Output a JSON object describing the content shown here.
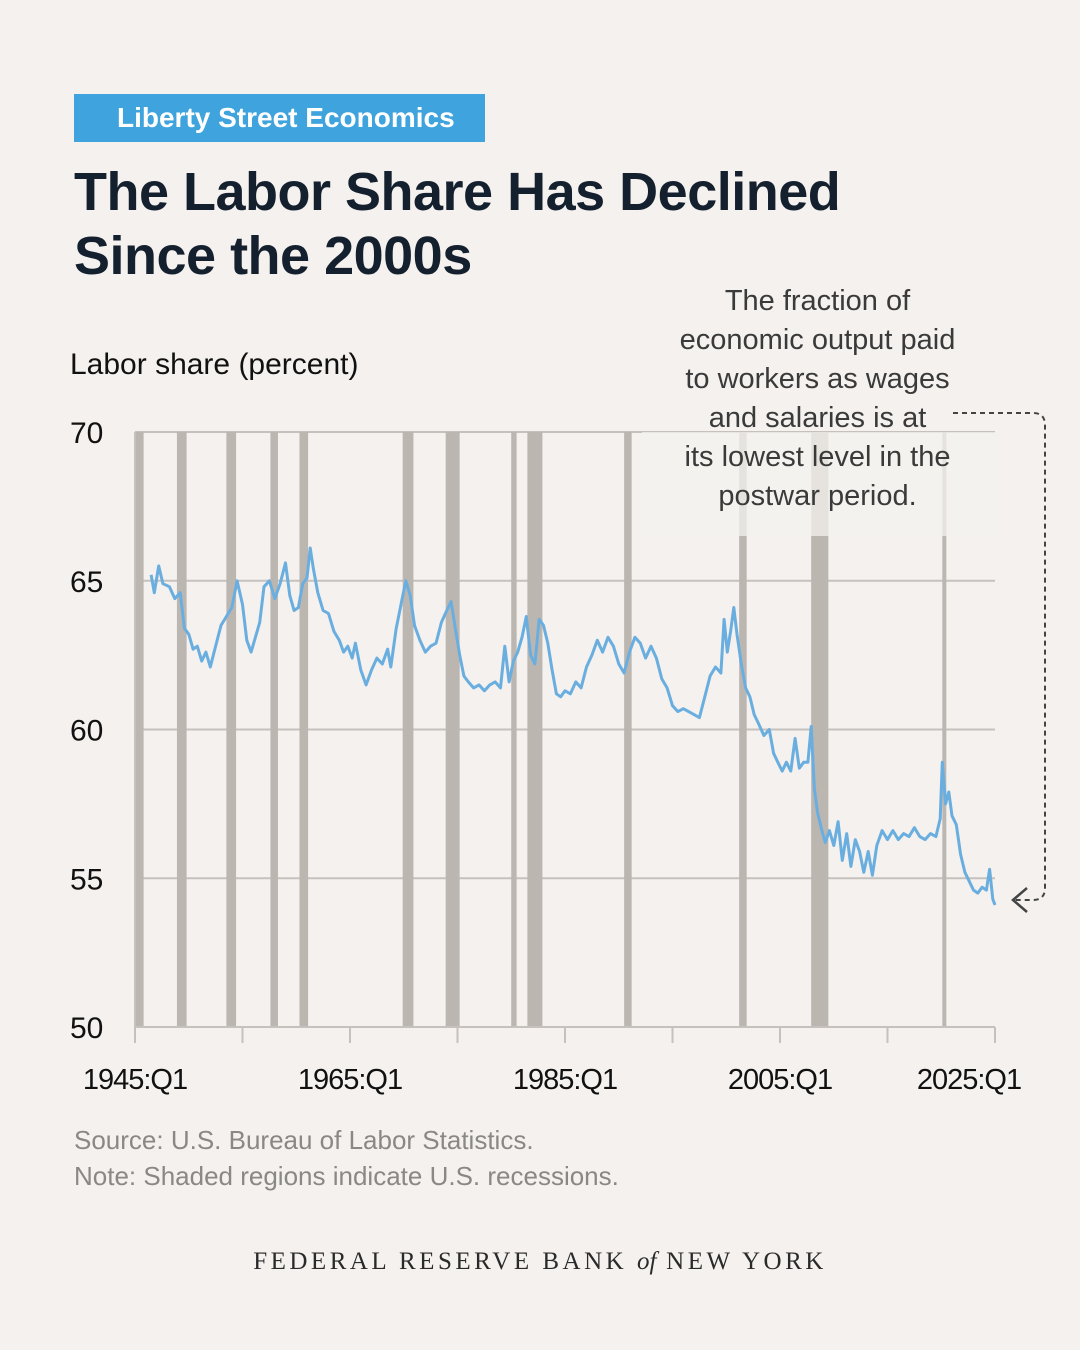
{
  "header": {
    "badge": "Liberty Street Economics",
    "title_line1": "The Labor Share Has Declined",
    "title_line2": "Since the 2000s"
  },
  "annotation": {
    "lines": [
      "The fraction of",
      "economic output paid",
      "to workers as wages",
      "and salaries is at",
      "its lowest level in the",
      "postwar period."
    ]
  },
  "footer": {
    "source": "Source: U.S. Bureau of Labor Statistics.",
    "note": "Note: Shaded regions indicate U.S. recessions.",
    "org_part1": "FEDERAL RESERVE BANK",
    "org_of": "of",
    "org_part2": "NEW YORK"
  },
  "colors": {
    "background": "#f4f1ee",
    "badge": "#3fa3dd",
    "line": "#6aaee0",
    "recession": "#bcb6b1",
    "grid": "#c5c1bd",
    "title": "#14202e"
  },
  "chart_data": {
    "type": "line",
    "ylabel": "Labor share (percent)",
    "xlabel": "",
    "ylim": [
      50,
      70
    ],
    "xlim": [
      1945.0,
      2025.0
    ],
    "yticks": [
      50,
      55,
      60,
      65,
      70
    ],
    "xticks": [
      1945,
      1965,
      1985,
      2005,
      2025
    ],
    "xtick_labels": [
      "1945:Q1",
      "1965:Q1",
      "1985:Q1",
      "2005:Q1",
      "2025:Q1"
    ],
    "grid": "horizontal",
    "recessions": [
      [
        1945.0,
        1945.8
      ],
      [
        1948.9,
        1949.8
      ],
      [
        1953.5,
        1954.4
      ],
      [
        1957.6,
        1958.3
      ],
      [
        1960.3,
        1961.1
      ],
      [
        1969.9,
        1970.9
      ],
      [
        1973.9,
        1975.2
      ],
      [
        1980.0,
        1980.5
      ],
      [
        1981.5,
        1982.9
      ],
      [
        1990.5,
        1991.2
      ],
      [
        2001.2,
        2001.9
      ],
      [
        2007.9,
        2009.5
      ],
      [
        2020.1,
        2020.4
      ]
    ],
    "series": [
      {
        "values": [
          [
            1946.5,
            65.2
          ],
          [
            1946.8,
            64.6
          ],
          [
            1947.2,
            65.5
          ],
          [
            1947.6,
            64.9
          ],
          [
            1948.2,
            64.8
          ],
          [
            1948.7,
            64.4
          ],
          [
            1949.2,
            64.6
          ],
          [
            1949.6,
            63.4
          ],
          [
            1950.0,
            63.2
          ],
          [
            1950.4,
            62.7
          ],
          [
            1950.8,
            62.8
          ],
          [
            1951.2,
            62.3
          ],
          [
            1951.6,
            62.6
          ],
          [
            1952.0,
            62.1
          ],
          [
            1952.5,
            62.8
          ],
          [
            1953.0,
            63.5
          ],
          [
            1953.5,
            63.8
          ],
          [
            1954.0,
            64.1
          ],
          [
            1954.5,
            65.0
          ],
          [
            1955.0,
            64.2
          ],
          [
            1955.4,
            63.0
          ],
          [
            1955.8,
            62.6
          ],
          [
            1956.2,
            63.1
          ],
          [
            1956.6,
            63.6
          ],
          [
            1957.0,
            64.8
          ],
          [
            1957.5,
            65.0
          ],
          [
            1958.0,
            64.4
          ],
          [
            1958.5,
            64.9
          ],
          [
            1959.0,
            65.6
          ],
          [
            1959.4,
            64.5
          ],
          [
            1959.8,
            64.0
          ],
          [
            1960.2,
            64.1
          ],
          [
            1960.6,
            64.9
          ],
          [
            1961.0,
            65.1
          ],
          [
            1961.3,
            66.1
          ],
          [
            1961.6,
            65.4
          ],
          [
            1962.0,
            64.6
          ],
          [
            1962.5,
            64.0
          ],
          [
            1963.0,
            63.9
          ],
          [
            1963.5,
            63.3
          ],
          [
            1964.0,
            63.0
          ],
          [
            1964.4,
            62.6
          ],
          [
            1964.8,
            62.8
          ],
          [
            1965.2,
            62.4
          ],
          [
            1965.5,
            62.9
          ],
          [
            1966.0,
            62.0
          ],
          [
            1966.5,
            61.5
          ],
          [
            1967.0,
            62.0
          ],
          [
            1967.5,
            62.4
          ],
          [
            1968.0,
            62.2
          ],
          [
            1968.5,
            62.7
          ],
          [
            1968.8,
            62.1
          ],
          [
            1969.3,
            63.4
          ],
          [
            1969.8,
            64.3
          ],
          [
            1970.2,
            65.0
          ],
          [
            1970.6,
            64.5
          ],
          [
            1971.0,
            63.5
          ],
          [
            1971.5,
            63.0
          ],
          [
            1972.0,
            62.6
          ],
          [
            1972.5,
            62.8
          ],
          [
            1973.0,
            62.9
          ],
          [
            1973.5,
            63.6
          ],
          [
            1974.0,
            64.0
          ],
          [
            1974.4,
            64.3
          ],
          [
            1974.8,
            63.4
          ],
          [
            1975.2,
            62.5
          ],
          [
            1975.6,
            61.8
          ],
          [
            1976.0,
            61.6
          ],
          [
            1976.5,
            61.4
          ],
          [
            1977.0,
            61.5
          ],
          [
            1977.5,
            61.3
          ],
          [
            1978.0,
            61.5
          ],
          [
            1978.5,
            61.6
          ],
          [
            1979.0,
            61.4
          ],
          [
            1979.4,
            62.8
          ],
          [
            1979.8,
            61.6
          ],
          [
            1980.2,
            62.3
          ],
          [
            1980.6,
            62.6
          ],
          [
            1981.0,
            63.1
          ],
          [
            1981.4,
            63.8
          ],
          [
            1981.8,
            62.5
          ],
          [
            1982.2,
            62.2
          ],
          [
            1982.6,
            63.7
          ],
          [
            1983.0,
            63.5
          ],
          [
            1983.4,
            62.9
          ],
          [
            1983.8,
            62.0
          ],
          [
            1984.2,
            61.2
          ],
          [
            1984.6,
            61.1
          ],
          [
            1985.0,
            61.3
          ],
          [
            1985.5,
            61.2
          ],
          [
            1986.0,
            61.6
          ],
          [
            1986.5,
            61.4
          ],
          [
            1987.0,
            62.1
          ],
          [
            1987.5,
            62.5
          ],
          [
            1988.0,
            63.0
          ],
          [
            1988.5,
            62.6
          ],
          [
            1989.0,
            63.1
          ],
          [
            1989.5,
            62.8
          ],
          [
            1990.0,
            62.2
          ],
          [
            1990.5,
            61.9
          ],
          [
            1991.0,
            62.6
          ],
          [
            1991.5,
            63.1
          ],
          [
            1992.0,
            62.9
          ],
          [
            1992.5,
            62.4
          ],
          [
            1993.0,
            62.8
          ],
          [
            1993.5,
            62.4
          ],
          [
            1994.0,
            61.7
          ],
          [
            1994.5,
            61.4
          ],
          [
            1995.0,
            60.8
          ],
          [
            1995.5,
            60.6
          ],
          [
            1996.0,
            60.7
          ],
          [
            1996.5,
            60.6
          ],
          [
            1997.0,
            60.5
          ],
          [
            1997.5,
            60.4
          ],
          [
            1998.0,
            61.1
          ],
          [
            1998.5,
            61.8
          ],
          [
            1999.0,
            62.1
          ],
          [
            1999.5,
            61.9
          ],
          [
            1999.8,
            63.7
          ],
          [
            2000.1,
            62.6
          ],
          [
            2000.4,
            63.3
          ],
          [
            2000.7,
            64.1
          ],
          [
            2001.0,
            63.2
          ],
          [
            2001.4,
            62.2
          ],
          [
            2001.8,
            61.4
          ],
          [
            2002.2,
            61.1
          ],
          [
            2002.6,
            60.5
          ],
          [
            2003.0,
            60.2
          ],
          [
            2003.5,
            59.8
          ],
          [
            2004.0,
            60.0
          ],
          [
            2004.4,
            59.2
          ],
          [
            2004.8,
            58.9
          ],
          [
            2005.2,
            58.6
          ],
          [
            2005.6,
            58.9
          ],
          [
            2006.0,
            58.6
          ],
          [
            2006.4,
            59.7
          ],
          [
            2006.8,
            58.7
          ],
          [
            2007.2,
            58.9
          ],
          [
            2007.6,
            58.9
          ],
          [
            2007.9,
            60.1
          ],
          [
            2008.2,
            58.0
          ],
          [
            2008.5,
            57.2
          ],
          [
            2008.9,
            56.6
          ],
          [
            2009.2,
            56.2
          ],
          [
            2009.6,
            56.6
          ],
          [
            2010.0,
            56.1
          ],
          [
            2010.4,
            56.9
          ],
          [
            2010.8,
            55.6
          ],
          [
            2011.2,
            56.5
          ],
          [
            2011.6,
            55.4
          ],
          [
            2012.0,
            56.3
          ],
          [
            2012.4,
            55.9
          ],
          [
            2012.8,
            55.2
          ],
          [
            2013.2,
            55.9
          ],
          [
            2013.6,
            55.1
          ],
          [
            2014.0,
            56.1
          ],
          [
            2014.5,
            56.6
          ],
          [
            2015.0,
            56.3
          ],
          [
            2015.5,
            56.6
          ],
          [
            2016.0,
            56.3
          ],
          [
            2016.5,
            56.5
          ],
          [
            2017.0,
            56.4
          ],
          [
            2017.5,
            56.7
          ],
          [
            2018.0,
            56.4
          ],
          [
            2018.5,
            56.3
          ],
          [
            2019.0,
            56.5
          ],
          [
            2019.5,
            56.4
          ],
          [
            2019.9,
            57.0
          ],
          [
            2020.1,
            58.9
          ],
          [
            2020.4,
            57.5
          ],
          [
            2020.7,
            57.9
          ],
          [
            2021.0,
            57.1
          ],
          [
            2021.4,
            56.8
          ],
          [
            2021.8,
            55.8
          ],
          [
            2022.2,
            55.2
          ],
          [
            2022.6,
            54.9
          ],
          [
            2023.0,
            54.6
          ],
          [
            2023.4,
            54.5
          ],
          [
            2023.8,
            54.7
          ],
          [
            2024.2,
            54.6
          ],
          [
            2024.5,
            55.3
          ],
          [
            2024.8,
            54.3
          ],
          [
            2025.0,
            54.1
          ]
        ]
      }
    ]
  }
}
